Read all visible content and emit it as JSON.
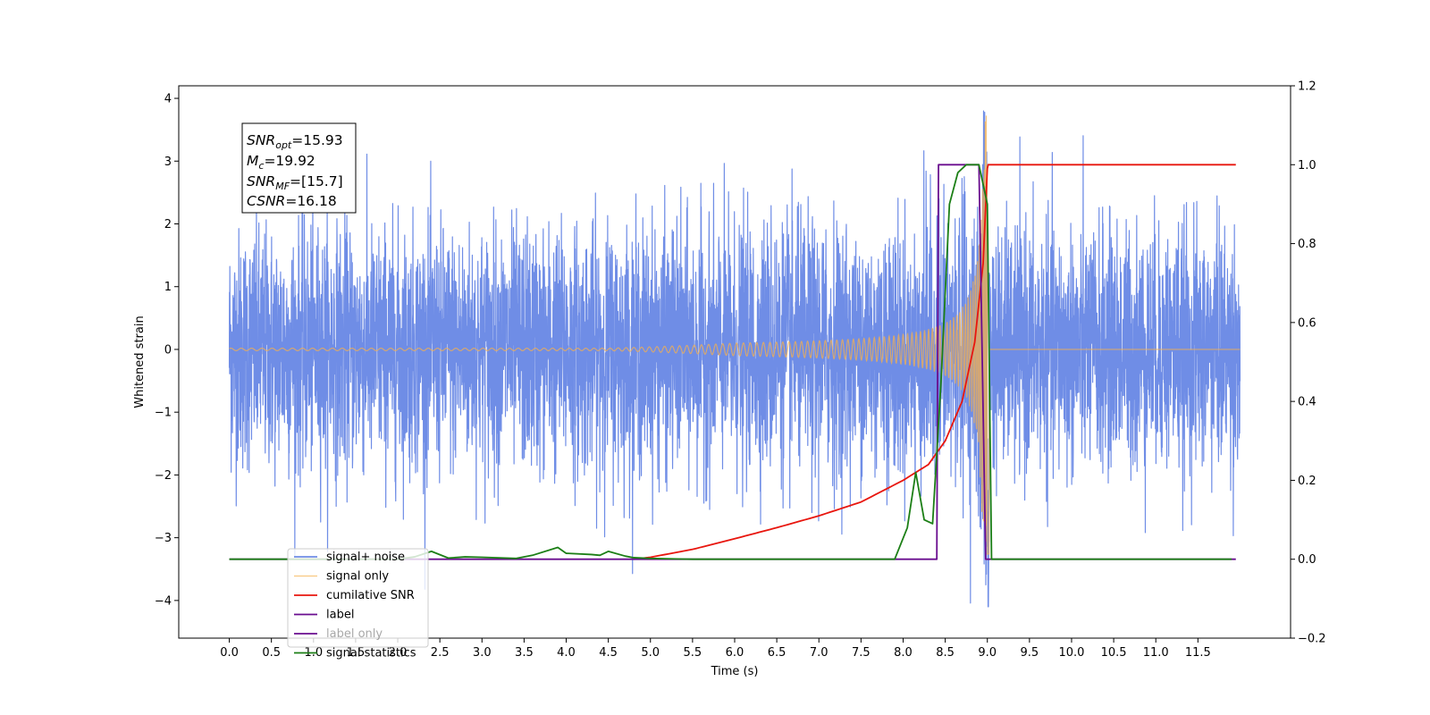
{
  "chart_data": {
    "type": "line",
    "xlabel": "Time (s)",
    "ylabel": "Whitened strain",
    "xlim": [
      -0.6,
      12.6
    ],
    "ylim": [
      -4.6,
      4.2
    ],
    "y2lim": [
      -0.2,
      1.2
    ],
    "grid": false,
    "legend_placement": "lower-left",
    "x_ticks": [
      "0.0",
      "0.5",
      "1.0",
      "1.5",
      "2.0",
      "2.5",
      "3.0",
      "3.5",
      "4.0",
      "4.5",
      "5.0",
      "5.5",
      "6.0",
      "6.5",
      "7.0",
      "7.5",
      "8.0",
      "8.5",
      "9.0",
      "9.5",
      "10.0",
      "10.5",
      "11.0",
      "11.5"
    ],
    "y_ticks": [
      "4",
      "3",
      "2",
      "1",
      "0",
      "−1",
      "−2",
      "−3",
      "−4"
    ],
    "y2_ticks": [
      "1.2",
      "1.0",
      "0.8",
      "0.6",
      "0.4",
      "0.2",
      "0.0",
      "−0.2"
    ],
    "annotation": {
      "snr_opt": {
        "sym": "SNR",
        "sub": "opt",
        "value": "=15.93"
      },
      "mc": {
        "sym": "M",
        "sub": "c",
        "value": "=19.92"
      },
      "snr_mf": {
        "sym": "SNR",
        "sub": "MF",
        "value": "=[15.7]"
      },
      "csnr": {
        "sym": "CSNR",
        "value": "=16.18"
      }
    },
    "series": [
      {
        "name": "signal+ noise",
        "color": "#6f8de6",
        "axis": "left",
        "noise_amplitude_range": [
          -4.1,
          3.8
        ],
        "x_range": [
          0.0,
          12.0
        ]
      },
      {
        "name": "signal only",
        "color": "#f5b04c",
        "axis": "left",
        "note_envelope_peak": 3.8,
        "peak_time": 9.0
      },
      {
        "name": "cumilative SNR",
        "color": "#e8160e",
        "axis": "right",
        "x": [
          4.8,
          5.0,
          5.5,
          6.0,
          6.5,
          7.0,
          7.5,
          8.0,
          8.3,
          8.5,
          8.7,
          8.85,
          8.95,
          9.0,
          9.01,
          11.95
        ],
        "y": [
          0.0,
          0.005,
          0.025,
          0.052,
          0.08,
          0.11,
          0.145,
          0.2,
          0.24,
          0.3,
          0.4,
          0.55,
          0.75,
          0.99,
          1.0,
          1.0
        ]
      },
      {
        "name": "label",
        "color": "#6a0d8f",
        "axis": "right",
        "x": [
          0.0,
          8.4,
          8.42,
          8.9,
          8.98,
          9.0,
          11.95
        ],
        "y": [
          0.0,
          0.0,
          1.0,
          1.0,
          0.0,
          0.0,
          0.0
        ]
      },
      {
        "name": "label only",
        "color": "#6a0d8f",
        "axis": "right",
        "hidden": true
      },
      {
        "name": "signal statistics",
        "color": "#1c7f16",
        "axis": "right",
        "x": [
          0.0,
          2.0,
          2.2,
          2.4,
          2.6,
          2.8,
          3.0,
          3.4,
          3.6,
          3.9,
          4.0,
          4.3,
          4.4,
          4.5,
          4.7,
          4.8,
          5.0,
          5.5,
          6.0,
          7.9,
          8.05,
          8.15,
          8.25,
          8.35,
          8.45,
          8.55,
          8.65,
          8.75,
          8.9,
          9.0,
          9.05,
          11.9
        ],
        "y": [
          0.0,
          0.0,
          0.006,
          0.02,
          0.003,
          0.006,
          0.005,
          0.002,
          0.01,
          0.03,
          0.015,
          0.012,
          0.01,
          0.02,
          0.008,
          0.004,
          0.002,
          0.0,
          0.0,
          0.0,
          0.08,
          0.22,
          0.1,
          0.09,
          0.45,
          0.9,
          0.98,
          1.0,
          1.0,
          0.9,
          0.0,
          0.0
        ]
      }
    ]
  }
}
